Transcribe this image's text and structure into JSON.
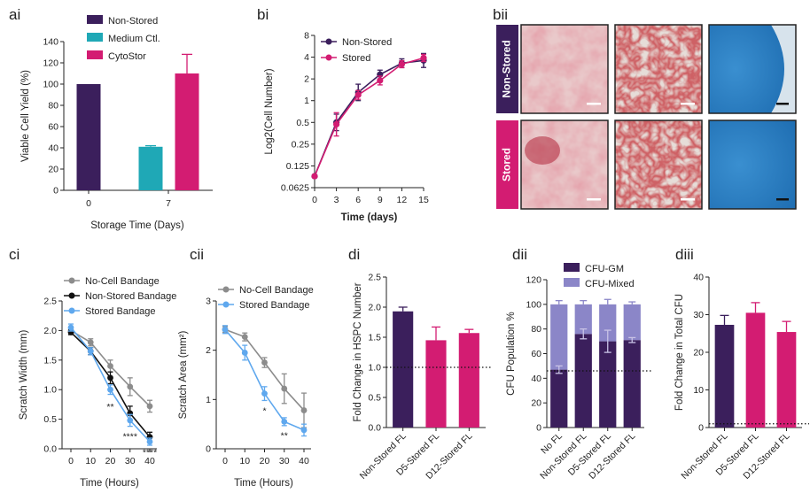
{
  "colors": {
    "non_stored": "#3b1f5c",
    "medium": "#1fa8b6",
    "cytostor": "#d31c72",
    "no_cell": "#8c8c8c",
    "nonstored_bandage": "#111111",
    "stored_bandage": "#5fa8ee",
    "cfu_gm": "#3b1f5c",
    "cfu_mixed": "#8b86c8",
    "stain_red": "#b84856",
    "stain_blue": "#2e7fc0"
  },
  "panels": {
    "ai": "ai",
    "bi": "bi",
    "bii": "bii",
    "ci": "ci",
    "cii": "cii",
    "di": "di",
    "dii": "dii",
    "diii": "diii"
  },
  "micrograph": {
    "row_labels": [
      "Non-Stored",
      "Stored"
    ]
  },
  "chart_data": [
    {
      "id": "ai",
      "type": "bar",
      "xlabel": "Storage Time (Days)",
      "ylabel": "Viable Cell Yield (%)",
      "ylim": [
        0,
        140
      ],
      "yticks": [
        0,
        20,
        40,
        60,
        80,
        100,
        120,
        140
      ],
      "xticks": [
        "0",
        "7"
      ],
      "legend": [
        "Non-Stored",
        "Medium Ctl.",
        "CytoStor"
      ],
      "bars": [
        {
          "series": "Non-Stored",
          "group": "0",
          "value": 100,
          "err": 0
        },
        {
          "series": "Medium Ctl.",
          "group": "7",
          "value": 41,
          "err": 1
        },
        {
          "series": "CytoStor",
          "group": "7",
          "value": 110,
          "err": 18
        }
      ]
    },
    {
      "id": "bi",
      "type": "line",
      "xlabel": "Time (days)",
      "ylabel": "Log2(Cell Number)",
      "xlim": [
        0,
        15
      ],
      "xticks": [
        "0",
        "3",
        "6",
        "9",
        "12",
        "15"
      ],
      "yscale": "log2",
      "yticks": [
        "0.0625",
        "0.125",
        "0.25",
        "0.5",
        "1",
        "2",
        "4",
        "8"
      ],
      "x": [
        0,
        3,
        6,
        9,
        12,
        15
      ],
      "series": [
        {
          "name": "Non-Stored",
          "values": [
            0.09,
            0.5,
            1.3,
            2.3,
            3.3,
            3.6
          ],
          "err_factor": [
            1.0,
            1.3,
            1.3,
            1.15,
            1.15,
            1.25
          ]
        },
        {
          "name": "Stored",
          "values": [
            0.09,
            0.47,
            1.2,
            1.9,
            3.2,
            3.9
          ],
          "err_factor": [
            1.0,
            1.45,
            1.15,
            1.15,
            1.12,
            1.12
          ]
        }
      ]
    },
    {
      "id": "ci",
      "type": "line",
      "xlabel": "Time (Hours)",
      "ylabel": "Scratch Width (mm)",
      "ylim": [
        0,
        2.5
      ],
      "yticks": [
        "0.0",
        "0.5",
        "1.0",
        "1.5",
        "2.0",
        "2.5"
      ],
      "xticks": [
        "0",
        "10",
        "20",
        "30",
        "40"
      ],
      "x": [
        0,
        10,
        20,
        30,
        40
      ],
      "series": [
        {
          "name": "No-Cell Bandage",
          "values": [
            2.0,
            1.8,
            1.4,
            1.05,
            0.72
          ],
          "err": [
            0.05,
            0.06,
            0.1,
            0.15,
            0.1
          ]
        },
        {
          "name": "Non-Stored Bandage",
          "values": [
            1.97,
            1.65,
            1.2,
            0.6,
            0.2
          ],
          "err": [
            0.04,
            0.06,
            0.1,
            0.12,
            0.08
          ]
        },
        {
          "name": "Stored Bandage",
          "values": [
            2.05,
            1.65,
            1.0,
            0.48,
            0.12
          ],
          "err": [
            0.06,
            0.06,
            0.08,
            0.1,
            0.06
          ]
        }
      ],
      "annotations": [
        {
          "x": 20,
          "y": 0.72,
          "text": "**"
        },
        {
          "x": 30,
          "y": 0.22,
          "text": "****"
        },
        {
          "x": 40,
          "y": -0.05,
          "text": "****"
        }
      ]
    },
    {
      "id": "cii",
      "type": "line",
      "xlabel": "Time (Hours)",
      "ylabel": "Scratch Area (mm²)",
      "ylim": [
        0,
        3
      ],
      "yticks": [
        "0",
        "1",
        "2",
        "3"
      ],
      "xticks": [
        "0",
        "10",
        "20",
        "30",
        "40"
      ],
      "x": [
        0,
        10,
        20,
        30,
        40
      ],
      "series": [
        {
          "name": "No-Cell Bandage",
          "values": [
            2.42,
            2.27,
            1.75,
            1.22,
            0.78
          ],
          "err": [
            0.06,
            0.08,
            0.1,
            0.3,
            0.35
          ]
        },
        {
          "name": "Stored Bandage",
          "values": [
            2.42,
            1.95,
            1.12,
            0.55,
            0.38
          ],
          "err": [
            0.08,
            0.15,
            0.14,
            0.08,
            0.12
          ]
        }
      ],
      "annotations": [
        {
          "x": 20,
          "y": 0.78,
          "text": "*"
        },
        {
          "x": 30,
          "y": 0.28,
          "text": "**"
        }
      ]
    },
    {
      "id": "di",
      "type": "bar",
      "ylabel": "Fold Change in HSPC Number",
      "ylim": [
        0,
        2.5
      ],
      "yticks": [
        "0.0",
        "0.5",
        "1.0",
        "1.5",
        "2.0",
        "2.5"
      ],
      "categories": [
        "Non-Stored FL",
        "D5-Stored FL",
        "D12-Stored FL"
      ],
      "values": [
        1.93,
        1.45,
        1.57
      ],
      "err": [
        0.07,
        0.22,
        0.06
      ],
      "reference_line": 1.0
    },
    {
      "id": "dii",
      "type": "bar",
      "ylabel": "CFU Population %",
      "ylim": [
        0,
        120
      ],
      "yticks": [
        "0",
        "20",
        "40",
        "60",
        "80",
        "100",
        "120"
      ],
      "categories": [
        "No FL",
        "Non-Stored FL",
        "D5-Stored FL",
        "D12-Stored FL"
      ],
      "legend": [
        "CFU-GM",
        "CFU-Mixed"
      ],
      "series": [
        {
          "name": "CFU-GM",
          "values": [
            47,
            76,
            70,
            71
          ],
          "err": [
            3,
            4,
            9,
            2
          ]
        },
        {
          "name": "CFU-Mixed",
          "values": [
            53,
            24,
            30,
            29
          ],
          "err": [
            3,
            3,
            4,
            2
          ]
        }
      ],
      "reference_line": 46
    },
    {
      "id": "diii",
      "type": "bar",
      "ylabel": "Fold Change in Total CFU",
      "ylim": [
        0,
        40
      ],
      "yticks": [
        "0",
        "10",
        "20",
        "30",
        "40"
      ],
      "categories": [
        "Non-Stored FL",
        "D5-Stored FL",
        "D12-Stored FL"
      ],
      "values": [
        27.3,
        30.5,
        25.4
      ],
      "err": [
        2.5,
        2.7,
        2.8
      ],
      "reference_line": 1
    }
  ]
}
